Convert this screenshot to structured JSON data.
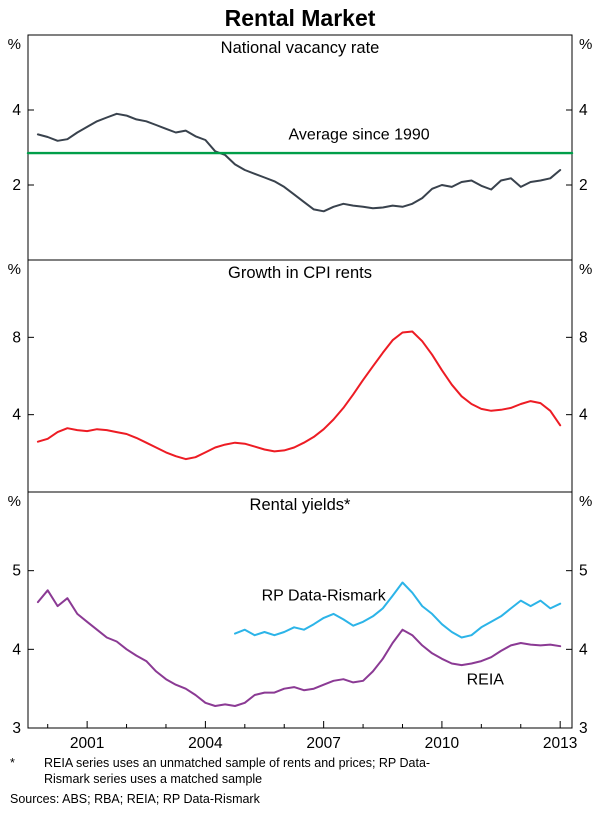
{
  "title": "Rental Market",
  "footnotes": {
    "asterisk_marker": "*",
    "footnote_line1": "REIA series uses an unmatched sample of rents and prices; RP Data-",
    "footnote_line2": "Rismark series uses a matched sample",
    "sources": "Sources: ABS; RBA; REIA; RP Data-Rismark"
  },
  "chart_data": {
    "type": "line",
    "title": "Rental Market",
    "x_axis": {
      "lim": [
        1999.5,
        2013.3
      ],
      "ticks": [
        2001,
        2004,
        2007,
        2010,
        2013
      ],
      "unit": "year"
    },
    "panels": [
      {
        "type": "line",
        "title": "National vacancy rate",
        "unit": "%",
        "ylim": [
          0,
          6
        ],
        "yticks": [
          2,
          4
        ],
        "x": [
          1999.75,
          2000,
          2000.25,
          2000.5,
          2000.75,
          2001,
          2001.25,
          2001.5,
          2001.75,
          2002,
          2002.25,
          2002.5,
          2002.75,
          2003,
          2003.25,
          2003.5,
          2003.75,
          2004,
          2004.25,
          2004.5,
          2004.75,
          2005,
          2005.25,
          2005.5,
          2005.75,
          2006,
          2006.25,
          2006.5,
          2006.75,
          2007,
          2007.25,
          2007.5,
          2007.75,
          2008,
          2008.25,
          2008.5,
          2008.75,
          2009,
          2009.25,
          2009.5,
          2009.75,
          2010,
          2010.25,
          2010.5,
          2010.75,
          2011,
          2011.25,
          2011.5,
          2011.75,
          2012,
          2012.25,
          2012.5,
          2012.75,
          2013
        ],
        "series": [
          {
            "name": "National vacancy rate",
            "color": "#39424d",
            "width": 2,
            "y": [
              3.35,
              3.28,
              3.18,
              3.22,
              3.4,
              3.55,
              3.7,
              3.8,
              3.9,
              3.85,
              3.75,
              3.7,
              3.6,
              3.5,
              3.4,
              3.45,
              3.3,
              3.2,
              2.9,
              2.8,
              2.55,
              2.4,
              2.3,
              2.2,
              2.1,
              1.95,
              1.75,
              1.55,
              1.35,
              1.3,
              1.42,
              1.5,
              1.45,
              1.42,
              1.38,
              1.4,
              1.45,
              1.42,
              1.5,
              1.65,
              1.9,
              2.0,
              1.95,
              2.08,
              2.12,
              1.98,
              1.88,
              2.12,
              2.18,
              1.95,
              2.08,
              2.12,
              2.18,
              2.4
            ]
          },
          {
            "name": "Average since 1990",
            "color": "#009e49",
            "width": 2.4,
            "x": [
              1999.5,
              2013.3
            ],
            "y": [
              2.85,
              2.85
            ]
          }
        ],
        "annotations": [
          {
            "text": "Average since 1990",
            "color": "#009e49",
            "x": 2007.9,
            "y": 3.22
          }
        ]
      },
      {
        "type": "line",
        "title": "Growth in CPI rents",
        "unit": "%",
        "ylim": [
          0,
          12
        ],
        "yticks": [
          4,
          8
        ],
        "x": [
          1999.75,
          2000,
          2000.25,
          2000.5,
          2000.75,
          2001,
          2001.25,
          2001.5,
          2001.75,
          2002,
          2002.25,
          2002.5,
          2002.75,
          2003,
          2003.25,
          2003.5,
          2003.75,
          2004,
          2004.25,
          2004.5,
          2004.75,
          2005,
          2005.25,
          2005.5,
          2005.75,
          2006,
          2006.25,
          2006.5,
          2006.75,
          2007,
          2007.25,
          2007.5,
          2007.75,
          2008,
          2008.25,
          2008.5,
          2008.75,
          2009,
          2009.25,
          2009.5,
          2009.75,
          2010,
          2010.25,
          2010.5,
          2010.75,
          2011,
          2011.25,
          2011.5,
          2011.75,
          2012,
          2012.25,
          2012.5,
          2012.75,
          2013
        ],
        "series": [
          {
            "name": "Growth in CPI rents",
            "color": "#ed1c24",
            "width": 2,
            "y": [
              2.6,
              2.75,
              3.1,
              3.3,
              3.2,
              3.15,
              3.25,
              3.2,
              3.1,
              3.0,
              2.8,
              2.55,
              2.3,
              2.05,
              1.85,
              1.7,
              1.8,
              2.05,
              2.3,
              2.45,
              2.55,
              2.5,
              2.35,
              2.2,
              2.1,
              2.15,
              2.3,
              2.55,
              2.85,
              3.25,
              3.75,
              4.35,
              5.05,
              5.8,
              6.5,
              7.2,
              7.85,
              8.25,
              8.3,
              7.8,
              7.1,
              6.3,
              5.55,
              4.95,
              4.55,
              4.3,
              4.2,
              4.25,
              4.35,
              4.55,
              4.7,
              4.6,
              4.2,
              3.45
            ]
          }
        ],
        "annotations": []
      },
      {
        "type": "line",
        "title": "Rental yields*",
        "unit": "%",
        "ylim": [
          3,
          6
        ],
        "yticks": [
          3,
          4,
          5
        ],
        "x": [
          1999.75,
          2000,
          2000.25,
          2000.5,
          2000.75,
          2001,
          2001.25,
          2001.5,
          2001.75,
          2002,
          2002.25,
          2002.5,
          2002.75,
          2003,
          2003.25,
          2003.5,
          2003.75,
          2004,
          2004.25,
          2004.5,
          2004.75,
          2005,
          2005.25,
          2005.5,
          2005.75,
          2006,
          2006.25,
          2006.5,
          2006.75,
          2007,
          2007.25,
          2007.5,
          2007.75,
          2008,
          2008.25,
          2008.5,
          2008.75,
          2009,
          2009.25,
          2009.5,
          2009.75,
          2010,
          2010.25,
          2010.5,
          2010.75,
          2011,
          2011.25,
          2011.5,
          2011.75,
          2012,
          2012.25,
          2012.5,
          2012.75,
          2013
        ],
        "series": [
          {
            "name": "REIA",
            "color": "#8b3a94",
            "width": 2,
            "y": [
              4.6,
              4.75,
              4.55,
              4.65,
              4.45,
              4.35,
              4.25,
              4.15,
              4.1,
              4.0,
              3.92,
              3.85,
              3.72,
              3.62,
              3.55,
              3.5,
              3.42,
              3.32,
              3.28,
              3.3,
              3.28,
              3.32,
              3.42,
              3.45,
              3.45,
              3.5,
              3.52,
              3.48,
              3.5,
              3.55,
              3.6,
              3.62,
              3.58,
              3.6,
              3.72,
              3.88,
              4.08,
              4.25,
              4.18,
              4.05,
              3.95,
              3.88,
              3.82,
              3.8,
              3.82,
              3.85,
              3.9,
              3.98,
              4.05,
              4.08,
              4.06,
              4.05,
              4.06,
              4.04
            ]
          },
          {
            "name": "RP Data-Rismark",
            "color": "#2cb4e8",
            "width": 2,
            "x": [
              2004.75,
              2005,
              2005.25,
              2005.5,
              2005.75,
              2006,
              2006.25,
              2006.5,
              2006.75,
              2007,
              2007.25,
              2007.5,
              2007.75,
              2008,
              2008.25,
              2008.5,
              2008.75,
              2009,
              2009.25,
              2009.5,
              2009.75,
              2010,
              2010.25,
              2010.5,
              2010.75,
              2011,
              2011.25,
              2011.5,
              2011.75,
              2012,
              2012.25,
              2012.5,
              2012.75,
              2013
            ],
            "y": [
              4.2,
              4.25,
              4.18,
              4.22,
              4.18,
              4.22,
              4.28,
              4.25,
              4.32,
              4.4,
              4.45,
              4.38,
              4.3,
              4.35,
              4.42,
              4.52,
              4.68,
              4.85,
              4.72,
              4.55,
              4.45,
              4.32,
              4.22,
              4.15,
              4.18,
              4.28,
              4.35,
              4.42,
              4.52,
              4.62,
              4.55,
              4.62,
              4.52,
              4.58
            ]
          }
        ],
        "annotations": [
          {
            "text": "RP Data-Rismark",
            "color": "#2cb4e8",
            "x": 2007.0,
            "y": 4.62
          },
          {
            "text": "REIA",
            "color": "#8b3a94",
            "x": 2011.1,
            "y": 3.55
          }
        ]
      }
    ]
  }
}
